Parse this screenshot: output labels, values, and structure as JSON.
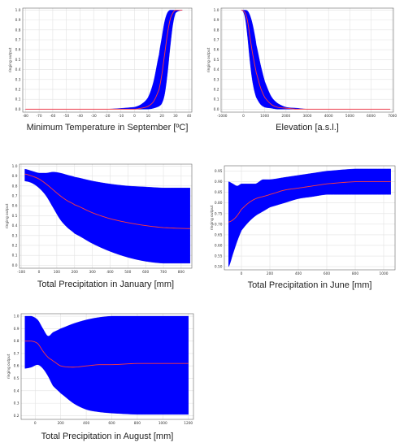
{
  "chart_data": [
    {
      "type": "area",
      "xlabel": "Minimum Temperature in September [ºC]",
      "ylabel": "ringing output",
      "xlim": [
        -82,
        42
      ],
      "ylim": [
        -0.03,
        1.02
      ],
      "xticks": [
        -80,
        -70,
        -60,
        -50,
        -40,
        -30,
        -20,
        -10,
        0,
        10,
        20,
        30,
        40
      ],
      "yticks": [
        0.0,
        0.1,
        0.2,
        0.3,
        0.4,
        0.5,
        0.6,
        0.7,
        0.8,
        0.9,
        1.0
      ],
      "ytick_labels": [
        "0.0",
        "0.1",
        "0.2",
        "0.3",
        "0.4",
        "0.5",
        "0.6",
        "0.7",
        "0.8",
        "0.9",
        "1.0"
      ],
      "x_range": [
        -80,
        35
      ],
      "x": [
        -80,
        -20,
        0,
        5,
        10,
        14,
        18,
        20,
        22,
        24,
        26,
        28,
        30,
        35
      ],
      "upper": [
        0.0,
        0.0,
        0.02,
        0.05,
        0.12,
        0.28,
        0.55,
        0.72,
        0.88,
        0.97,
        1.0,
        1.0,
        1.0,
        1.0
      ],
      "lower": [
        0.0,
        0.0,
        0.0,
        0.0,
        0.0,
        0.01,
        0.03,
        0.06,
        0.15,
        0.35,
        0.62,
        0.85,
        0.97,
        1.0
      ],
      "mean": [
        0.0,
        0.0,
        0.0,
        0.01,
        0.03,
        0.08,
        0.2,
        0.35,
        0.55,
        0.75,
        0.9,
        0.97,
        1.0,
        1.0
      ]
    },
    {
      "type": "area",
      "xlabel": "Elevation [a.s.l.]",
      "ylabel": "ringing output",
      "xlim": [
        -1050,
        7050
      ],
      "ylim": [
        -0.03,
        1.02
      ],
      "xticks": [
        -1000,
        0,
        1000,
        2000,
        3000,
        4000,
        5000,
        6000,
        7000
      ],
      "yticks": [
        0.0,
        0.1,
        0.2,
        0.3,
        0.4,
        0.5,
        0.6,
        0.7,
        0.8,
        0.9,
        1.0
      ],
      "ytick_labels": [
        "0.0",
        "0.1",
        "0.2",
        "0.3",
        "0.4",
        "0.5",
        "0.6",
        "0.7",
        "0.8",
        "0.9",
        "1.0"
      ],
      "x_range": [
        -100,
        6900
      ],
      "x": [
        -100,
        0,
        100,
        200,
        300,
        400,
        500,
        600,
        800,
        1000,
        1300,
        1600,
        2000,
        2500,
        3000,
        6900
      ],
      "upper": [
        1.0,
        1.0,
        1.0,
        0.99,
        0.95,
        0.88,
        0.78,
        0.65,
        0.45,
        0.28,
        0.13,
        0.06,
        0.02,
        0.01,
        0.0,
        0.0
      ],
      "lower": [
        1.0,
        0.98,
        0.9,
        0.72,
        0.5,
        0.32,
        0.2,
        0.12,
        0.05,
        0.02,
        0.01,
        0.0,
        0.0,
        0.0,
        0.0,
        0.0
      ],
      "mean": [
        1.0,
        0.99,
        0.96,
        0.88,
        0.74,
        0.6,
        0.48,
        0.37,
        0.22,
        0.12,
        0.05,
        0.02,
        0.01,
        0.0,
        0.0,
        0.0
      ]
    },
    {
      "type": "area",
      "xlabel": "Total Precipitation in January [mm]",
      "ylabel": "ringing output",
      "xlim": [
        -110,
        860
      ],
      "ylim": [
        -0.03,
        1.02
      ],
      "xticks": [
        -100,
        0,
        100,
        200,
        300,
        400,
        500,
        600,
        700,
        800
      ],
      "yticks": [
        0.0,
        0.1,
        0.2,
        0.3,
        0.4,
        0.5,
        0.6,
        0.7,
        0.8,
        0.9,
        1.0
      ],
      "ytick_labels": [
        "0.0",
        "0.1",
        "0.2",
        "0.3",
        "0.4",
        "0.5",
        "0.6",
        "0.7",
        "0.8",
        "0.9",
        "1.0"
      ],
      "x_range": [
        -80,
        850
      ],
      "x": [
        -80,
        -40,
        0,
        40,
        80,
        120,
        160,
        200,
        300,
        400,
        500,
        600,
        700,
        850
      ],
      "upper": [
        0.97,
        0.95,
        0.93,
        0.93,
        0.94,
        0.93,
        0.91,
        0.89,
        0.85,
        0.82,
        0.8,
        0.79,
        0.78,
        0.78
      ],
      "lower": [
        0.85,
        0.83,
        0.78,
        0.7,
        0.58,
        0.46,
        0.38,
        0.32,
        0.22,
        0.14,
        0.08,
        0.04,
        0.02,
        0.02
      ],
      "mean": [
        0.92,
        0.9,
        0.87,
        0.82,
        0.76,
        0.7,
        0.65,
        0.61,
        0.53,
        0.47,
        0.43,
        0.4,
        0.38,
        0.37
      ]
    },
    {
      "type": "area",
      "xlabel": "Total Precipitation in June [mm]",
      "ylabel": "ringing output",
      "xlim": [
        -120,
        1080
      ],
      "ylim": [
        0.485,
        0.975
      ],
      "xticks": [
        0,
        200,
        400,
        600,
        800,
        1000
      ],
      "yticks": [
        0.5,
        0.55,
        0.6,
        0.65,
        0.7,
        0.75,
        0.8,
        0.85,
        0.9,
        0.95
      ],
      "ytick_labels": [
        "0.50",
        "0.55",
        "0.60",
        "0.65",
        "0.70",
        "0.75",
        "0.80",
        "0.85",
        "0.90",
        "0.95"
      ],
      "x_range": [
        -90,
        1050
      ],
      "x": [
        -90,
        -60,
        -30,
        0,
        50,
        100,
        150,
        200,
        300,
        400,
        500,
        600,
        800,
        1050
      ],
      "upper": [
        0.9,
        0.89,
        0.88,
        0.89,
        0.89,
        0.89,
        0.91,
        0.91,
        0.92,
        0.93,
        0.94,
        0.95,
        0.96,
        0.96
      ],
      "lower": [
        0.5,
        0.56,
        0.62,
        0.67,
        0.71,
        0.74,
        0.76,
        0.78,
        0.8,
        0.82,
        0.83,
        0.84,
        0.84,
        0.84
      ],
      "mean": [
        0.71,
        0.72,
        0.74,
        0.77,
        0.8,
        0.82,
        0.83,
        0.84,
        0.86,
        0.87,
        0.88,
        0.89,
        0.9,
        0.9
      ]
    },
    {
      "type": "area",
      "xlabel": "Total Precipitation in August [mm]",
      "ylabel": "ringing output",
      "xlim": [
        -110,
        1240
      ],
      "ylim": [
        0.17,
        1.02
      ],
      "xticks": [
        0,
        200,
        400,
        600,
        800,
        1000,
        1200
      ],
      "yticks": [
        0.2,
        0.3,
        0.4,
        0.5,
        0.6,
        0.7,
        0.8,
        0.9,
        1.0
      ],
      "ytick_labels": [
        "0.2",
        "0.3",
        "0.4",
        "0.5",
        "0.6",
        "0.7",
        "0.8",
        "0.9",
        "1.0"
      ],
      "x_range": [
        -80,
        1200
      ],
      "x": [
        -80,
        -30,
        20,
        60,
        100,
        140,
        200,
        300,
        400,
        500,
        600,
        800,
        1000,
        1200
      ],
      "upper": [
        1.0,
        1.0,
        0.97,
        0.9,
        0.84,
        0.87,
        0.9,
        0.94,
        0.97,
        0.99,
        1.0,
        1.0,
        1.0,
        1.0
      ],
      "lower": [
        0.58,
        0.59,
        0.61,
        0.58,
        0.52,
        0.44,
        0.38,
        0.3,
        0.25,
        0.23,
        0.22,
        0.21,
        0.21,
        0.21
      ],
      "mean": [
        0.8,
        0.8,
        0.78,
        0.72,
        0.67,
        0.64,
        0.6,
        0.59,
        0.6,
        0.61,
        0.61,
        0.62,
        0.62,
        0.62
      ]
    }
  ]
}
